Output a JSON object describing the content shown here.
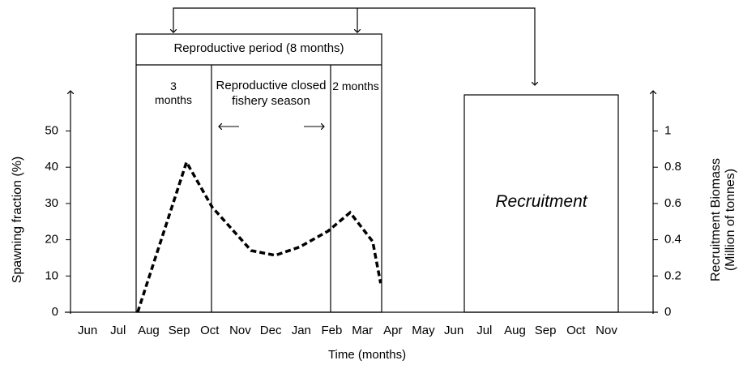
{
  "chart_data": {
    "type": "line",
    "y_label": "Spawning fraction (%)",
    "y2_label": "Recruitment Biomass (Million of tonnes)",
    "x_label": "Time (months)",
    "annotations": {
      "period": "Reproductive period (8 months)",
      "early": "3 months",
      "closed": "Reproductive closed fishery season",
      "late": "2 months",
      "recruitment": "Recruitment"
    },
    "xlim": [
      -0.56,
      18.5
    ],
    "xticks": [
      {
        "value": 0,
        "label": "Jun"
      },
      {
        "value": 1,
        "label": "Jul"
      },
      {
        "value": 2,
        "label": "Aug"
      },
      {
        "value": 3,
        "label": "Sep"
      },
      {
        "value": 4,
        "label": "Oct"
      },
      {
        "value": 5,
        "label": "Nov"
      },
      {
        "value": 6,
        "label": "Dec"
      },
      {
        "value": 7,
        "label": "Jan"
      },
      {
        "value": 8,
        "label": "Feb"
      },
      {
        "value": 9,
        "label": "Mar"
      },
      {
        "value": 10,
        "label": "Apr"
      },
      {
        "value": 11,
        "label": "May"
      },
      {
        "value": 12,
        "label": "Jun"
      },
      {
        "value": 13,
        "label": "Jul"
      },
      {
        "value": 14,
        "label": "Aug"
      },
      {
        "value": 15,
        "label": "Sep"
      },
      {
        "value": 16,
        "label": "Oct"
      },
      {
        "value": 17,
        "label": "Nov"
      }
    ],
    "ylim": [
      0,
      60
    ],
    "yticks": [
      0,
      10,
      20,
      30,
      40,
      50
    ],
    "y2lim": [
      0,
      1.2
    ],
    "y2ticks": [
      0,
      0.2,
      0.4,
      0.6,
      0.8,
      1
    ],
    "series": [
      {
        "color": "#000000",
        "x": [
          1.64,
          3.24,
          4.08,
          5.36,
          6.15,
          6.95,
          7.88,
          8.6,
          9.34,
          9.6
        ],
        "values": [
          0,
          41.4,
          29,
          17,
          15.7,
          18,
          22.4,
          27.5,
          19.5,
          8
        ]
      }
    ]
  }
}
